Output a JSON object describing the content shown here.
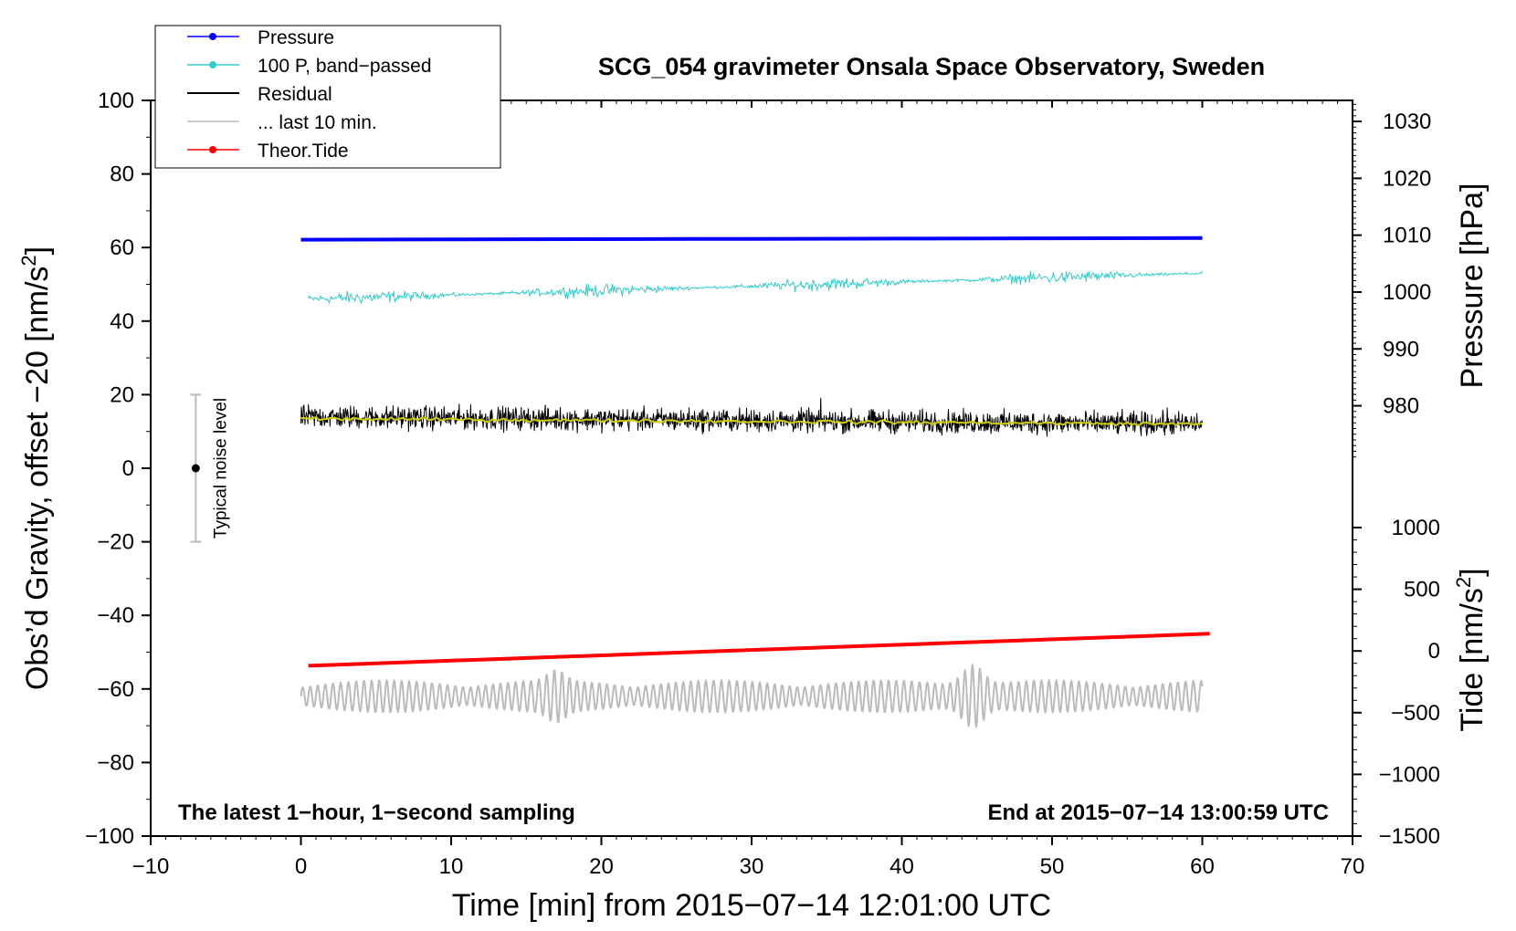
{
  "chart_data": {
    "type": "line",
    "title": "SCG_054 gravimeter Onsala Space Observatory, Sweden",
    "xlabel": "Time [min] from 2015−07−14 12:01:00 UTC",
    "ylabel_left_main": "Obs’d Gravity, offset −20 [nm/s",
    "ylabel_left_sup": "2",
    "ylabel_left_end": "]",
    "ylabel_right_pressure": "Pressure [hPa]",
    "ylabel_right_tide_main": "Tide [nm/s",
    "ylabel_right_tide_sup": "2",
    "ylabel_right_tide_end": "]",
    "xlim": [
      -10,
      70
    ],
    "ylim": [
      -100,
      100
    ],
    "pressure_ylim": [
      970.3,
      1033.7
    ],
    "tide_ylim": [
      -1500,
      1000
    ],
    "x_ticks": [
      -10,
      0,
      10,
      20,
      30,
      40,
      50,
      60,
      70
    ],
    "x_tick_labels": [
      "−10",
      "0",
      "10",
      "20",
      "30",
      "40",
      "50",
      "60",
      "70"
    ],
    "y_ticks": [
      -100,
      -80,
      -60,
      -40,
      -20,
      0,
      20,
      40,
      60,
      80,
      100
    ],
    "y_tick_labels": [
      "−100",
      "−80",
      "−60",
      "−40",
      "−20",
      "0",
      "20",
      "40",
      "60",
      "80",
      "100"
    ],
    "pressure_ticks": [
      980,
      990,
      1000,
      1010,
      1020,
      1030
    ],
    "pressure_tick_labels": [
      "980",
      "990",
      "1000",
      "1010",
      "1020",
      "1030"
    ],
    "tide_ticks": [
      -1500,
      -1000,
      -500,
      0,
      500,
      1000
    ],
    "tide_tick_labels": [
      "−1500",
      "−1000",
      "−500",
      "0",
      "500",
      "1000"
    ],
    "legend_position": "top-left",
    "legend": [
      {
        "label": "Pressure",
        "color": "#0000ff",
        "marker": true
      },
      {
        "label": "100 P, band−passed",
        "color": "#33cccc",
        "marker": true
      },
      {
        "label": "Residual",
        "color": "#000000",
        "marker": false
      },
      {
        "label": "... last 10 min.",
        "color": "#bbbbbb",
        "marker": false
      },
      {
        "label": "Theor.Tide",
        "color": "#ff0000",
        "marker": true
      }
    ],
    "series": [
      {
        "name": "Pressure",
        "color": "#0000ff",
        "axis": "pressure",
        "x": [
          0,
          10,
          20,
          30,
          40,
          50,
          60
        ],
        "values": [
          1009.2,
          1009.25,
          1009.3,
          1009.35,
          1009.4,
          1009.45,
          1009.5
        ]
      },
      {
        "name": "100 P, band−passed",
        "color": "#33cccc",
        "axis": "left",
        "x_start": 0.5,
        "x_end": 60,
        "trend_start": 46,
        "trend_end": 53,
        "amplitude": 2.5
      },
      {
        "name": "Residual",
        "color": "#000000",
        "axis": "left",
        "x_start": 0,
        "x_end": 60,
        "trend_start": 14,
        "trend_end": 12,
        "amplitude": 4.5
      },
      {
        "name": "Residual smoothed",
        "color": "#cccc00",
        "axis": "left",
        "x_start": 0,
        "x_end": 60,
        "trend_start": 13.5,
        "trend_end": 12
      },
      {
        "name": "... last 10 min.",
        "color": "#bbbbbb",
        "axis": "left",
        "x_start": 0,
        "x_end": 60,
        "center": -62,
        "amplitude": 4
      },
      {
        "name": "Theor.Tide",
        "color": "#ff0000",
        "axis": "tide",
        "x": [
          0.5,
          60.5
        ],
        "values": [
          -120,
          140
        ]
      }
    ],
    "noise_bar": {
      "x": -7,
      "center": 0,
      "low": -20,
      "high": 20,
      "label": "Typical noise level"
    },
    "annotations": {
      "bottom_left": "The latest 1−hour, 1−second sampling",
      "bottom_right": "End at 2015−07−14 13:00:59 UTC"
    },
    "grid": false
  }
}
